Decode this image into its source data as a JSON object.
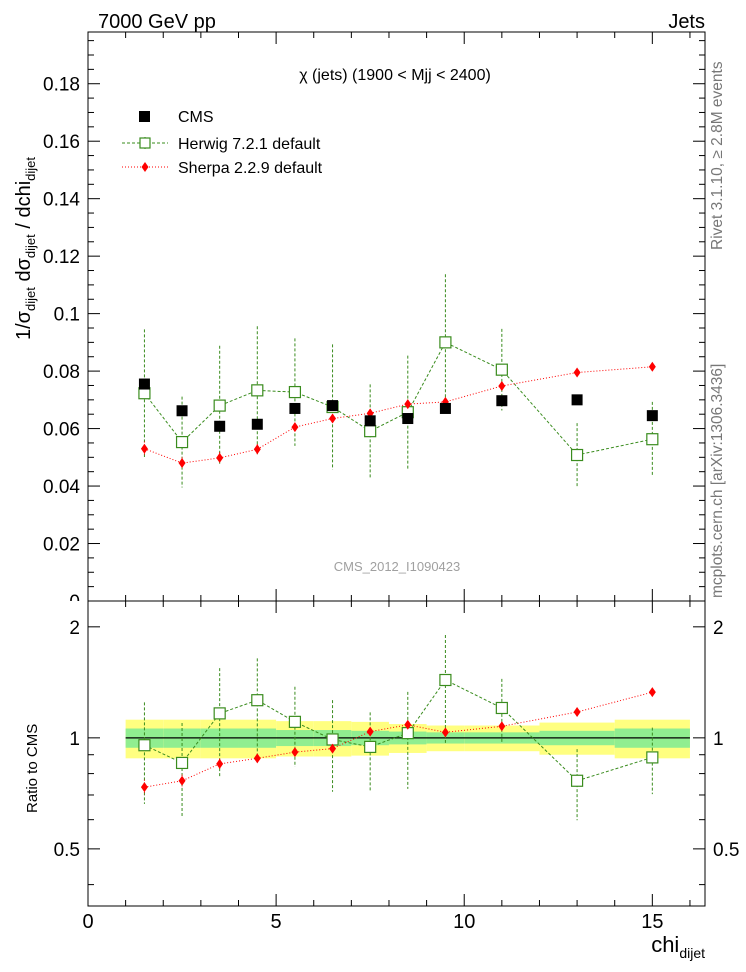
{
  "header": {
    "left": "7000 GeV pp",
    "right": "Jets"
  },
  "side_labels": {
    "rivet": "Rivet 3.1.10, ≥ 2.8M events",
    "mcplots": "mcplots.cern.ch [arXiv:1306.3436]"
  },
  "watermark": "CMS_2012_I1090423",
  "chart_data": [
    {
      "type": "scatter",
      "title": "χ (jets) (1900 < Mjj < 2400)",
      "ylabel": "1/σdijet dσdijet / dchidijet",
      "ylim": [
        0,
        0.198
      ],
      "xlim": [
        0,
        16.4
      ],
      "yticks": [
        0.02,
        0.04,
        0.06,
        0.08,
        0.1,
        0.12,
        0.14,
        0.16,
        0.18
      ],
      "yticklabels_shown": [
        "0.02",
        "0.04",
        "0.06",
        "0.08",
        "0.1",
        "0.12",
        "0.14",
        "0.16",
        "0.18"
      ],
      "legend_position": "top-left",
      "legend": [
        "CMS",
        "Herwig 7.2.1 default",
        "Sherpa 2.2.9 default"
      ],
      "bins": [
        [
          1,
          2
        ],
        [
          2,
          3
        ],
        [
          3,
          4
        ],
        [
          4,
          5
        ],
        [
          5,
          6
        ],
        [
          6,
          7
        ],
        [
          7,
          8
        ],
        [
          8,
          9
        ],
        [
          9,
          10
        ],
        [
          10,
          12
        ],
        [
          12,
          14
        ],
        [
          14,
          16
        ]
      ],
      "x": [
        1.5,
        2.5,
        3.5,
        4.5,
        5.5,
        6.5,
        7.5,
        8.5,
        9.5,
        11,
        13,
        15
      ],
      "series": [
        {
          "name": "CMS",
          "marker": "square",
          "color": "#000000",
          "values": [
            0.0755,
            0.0662,
            0.0608,
            0.0615,
            0.067,
            0.068,
            0.0627,
            0.0635,
            0.067,
            0.0697,
            0.07,
            0.0645
          ]
        },
        {
          "name": "Herwig 7.2.1 default",
          "marker": "open-square",
          "color": "#3a8c1e",
          "values": [
            0.0723,
            0.0553,
            0.068,
            0.0733,
            0.0727,
            0.0675,
            0.0591,
            0.0657,
            0.09,
            0.0805,
            0.0508,
            0.0563
          ],
          "err_low": [
            0.0222,
            0.0158,
            0.0208,
            0.0223,
            0.0187,
            0.0218,
            0.0163,
            0.0197,
            0.0228,
            0.0142,
            0.0111,
            0.013
          ],
          "err_high": [
            0.0222,
            0.0158,
            0.0208,
            0.0223,
            0.0187,
            0.0218,
            0.0163,
            0.0197,
            0.0237,
            0.0142,
            0.0111,
            0.013
          ]
        },
        {
          "name": "Sherpa 2.2.9 default",
          "marker": "diamond",
          "color": "#ff0000",
          "values": [
            0.053,
            0.048,
            0.0498,
            0.0528,
            0.0605,
            0.0635,
            0.0653,
            0.0685,
            0.0693,
            0.0748,
            0.0795,
            0.0815
          ],
          "err_low": [
            0.0025,
            0.002,
            0.002,
            0.0018,
            0.0015,
            0.0015,
            0.0015,
            0.0015,
            0.0015,
            0.0012,
            0.001,
            0.001
          ],
          "err_high": [
            0.0025,
            0.002,
            0.002,
            0.0018,
            0.0015,
            0.0015,
            0.0015,
            0.0015,
            0.0015,
            0.0012,
            0.001,
            0.001
          ]
        }
      ]
    },
    {
      "type": "scatter",
      "ylabel": "Ratio to CMS",
      "xlabel": "chidijet",
      "ylim": [
        0.35,
        2.35
      ],
      "xlim": [
        0,
        16.4
      ],
      "yticklabels_shown": [
        "0.5",
        "1",
        "2"
      ],
      "xticklabels_shown": [
        "0",
        "5",
        "10",
        "15"
      ],
      "band_outer_color": "#ffff80",
      "band_inner_color": "#90ee90",
      "reference_band": {
        "bins": [
          [
            1,
            2
          ],
          [
            2,
            3
          ],
          [
            3,
            4
          ],
          [
            4,
            5
          ],
          [
            5,
            6
          ],
          [
            6,
            7
          ],
          [
            7,
            8
          ],
          [
            8,
            9
          ],
          [
            9,
            10
          ],
          [
            10,
            12
          ],
          [
            12,
            14
          ],
          [
            14,
            16
          ]
        ],
        "outer_low": [
          0.88,
          0.88,
          0.88,
          0.88,
          0.89,
          0.89,
          0.895,
          0.91,
          0.92,
          0.92,
          0.9,
          0.88
        ],
        "outer_high": [
          1.12,
          1.12,
          1.12,
          1.12,
          1.11,
          1.11,
          1.105,
          1.09,
          1.08,
          1.08,
          1.1,
          1.12
        ],
        "inner_low": [
          0.94,
          0.94,
          0.94,
          0.94,
          0.95,
          0.95,
          0.955,
          0.96,
          0.965,
          0.965,
          0.955,
          0.94
        ],
        "inner_high": [
          1.06,
          1.06,
          1.06,
          1.06,
          1.05,
          1.05,
          1.045,
          1.04,
          1.035,
          1.035,
          1.045,
          1.06
        ]
      },
      "series": [
        {
          "name": "Herwig 7.2.1 default",
          "marker": "open-square",
          "color": "#3a8c1e",
          "values": [
            0.955,
            0.855,
            1.165,
            1.265,
            1.105,
            0.99,
            0.945,
            1.03,
            1.435,
            1.205,
            0.765,
            0.885
          ],
          "err_low": [
            0.293,
            0.242,
            0.38,
            0.377,
            0.271,
            0.276,
            0.227,
            0.303,
            0.466,
            0.24,
            0.167,
            0.181
          ],
          "err_high": [
            0.293,
            0.242,
            0.38,
            0.377,
            0.271,
            0.276,
            0.227,
            0.303,
            0.466,
            0.24,
            0.167,
            0.181
          ]
        },
        {
          "name": "Sherpa 2.2.9 default",
          "marker": "diamond",
          "color": "#ff0000",
          "values": [
            0.735,
            0.765,
            0.85,
            0.88,
            0.915,
            0.935,
            1.04,
            1.085,
            1.035,
            1.075,
            1.175,
            1.33
          ],
          "err_low": [
            0.035,
            0.03,
            0.028,
            0.025,
            0.022,
            0.022,
            0.02,
            0.02,
            0.02,
            0.018,
            0.015,
            0.015
          ],
          "err_high": [
            0.035,
            0.03,
            0.028,
            0.025,
            0.022,
            0.022,
            0.02,
            0.02,
            0.02,
            0.018,
            0.015,
            0.015
          ]
        }
      ]
    }
  ]
}
